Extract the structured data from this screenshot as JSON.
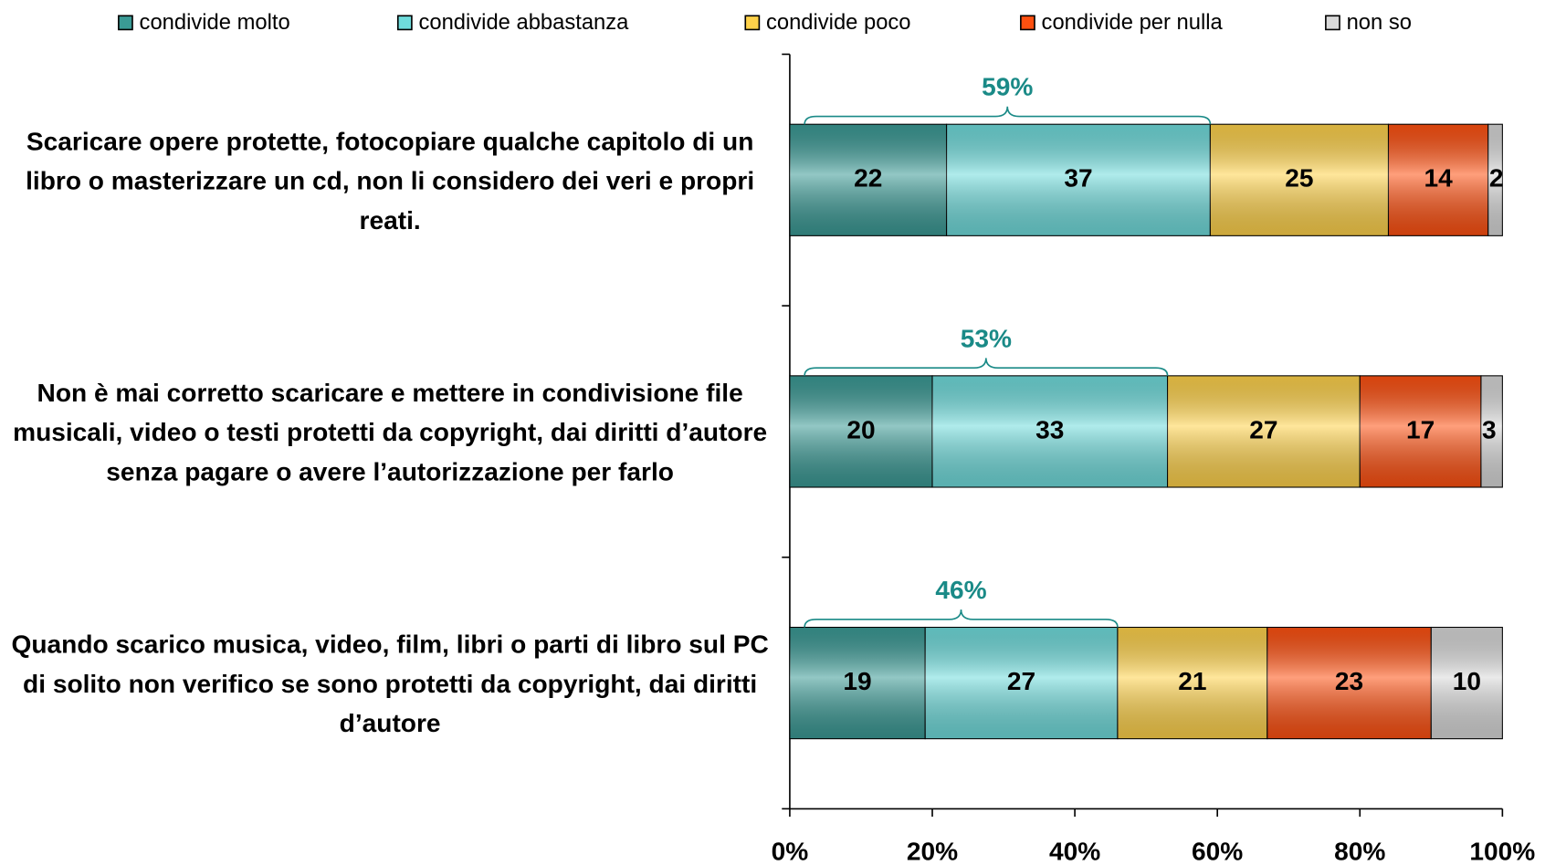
{
  "chart_data": {
    "type": "stacked_barh",
    "categories": [
      "Scaricare opere protette, fotocopiare qualche capitolo di un libro o masterizzare un cd, non li considero dei veri e propri reati.",
      "Non è mai corretto scaricare e mettere in condivisione file musicali, video o testi protetti da copyright, dai diritti d’autore senza pagare o avere l’autorizzazione per farlo",
      "Quando scarico musica, video, film, libri o parti di libro sul PC di solito non verifico se sono protetti da copyright, dai diritti d’autore"
    ],
    "series": [
      {
        "name": "condivide molto",
        "color": "#3a9a95",
        "values": [
          22,
          20,
          19
        ]
      },
      {
        "name": "condivide abbastanza",
        "color": "#6fdcdc",
        "values": [
          37,
          33,
          27
        ]
      },
      {
        "name": "condivide poco",
        "color": "#ffd24a",
        "values": [
          25,
          27,
          21
        ]
      },
      {
        "name": "condivide per nulla",
        "color": "#ff5010",
        "values": [
          14,
          17,
          23
        ]
      },
      {
        "name": "non so",
        "color": "#d9d9d9",
        "values": [
          2,
          3,
          10
        ]
      }
    ],
    "annotations": [
      {
        "value": 59,
        "label": "59%"
      },
      {
        "value": 53,
        "label": "53%"
      },
      {
        "value": 46,
        "label": "46%"
      }
    ],
    "xlim": [
      0,
      100
    ],
    "xticks": [
      {
        "value": 0,
        "label": "0%"
      },
      {
        "value": 20,
        "label": "20%"
      },
      {
        "value": 40,
        "label": "40%"
      },
      {
        "value": 60,
        "label": "60%"
      },
      {
        "value": 80,
        "label": "80%"
      },
      {
        "value": 100,
        "label": "100%"
      }
    ],
    "legend": "top"
  }
}
